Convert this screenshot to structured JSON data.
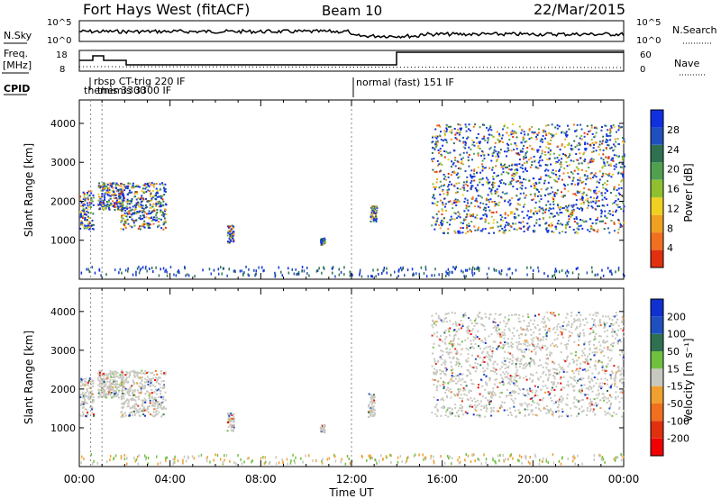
{
  "header": {
    "station": "Fort Hays West (fitACF)",
    "beam": "Beam 10",
    "date": "22/Mar/2015"
  },
  "noise": {
    "left_label": "N.Sky",
    "right_label": "N.Search",
    "ticks": [
      "10^5",
      "10^0"
    ],
    "right_ticks": [
      "10^5",
      "10^0"
    ]
  },
  "freq": {
    "left_label_1": "Freq.",
    "left_label_2": "[MHz]",
    "ticks": [
      "18",
      "8"
    ],
    "right_label": "Nave",
    "right_ticks": [
      "60",
      "0"
    ]
  },
  "cpid": {
    "label": "CPID",
    "segments": [
      {
        "text": "rbsp CT-trig 220 IF"
      },
      {
        "text": "themis 3300"
      },
      {
        "text": "themis 3300 IF"
      },
      {
        "text": "normal (fast) 151 IF"
      }
    ]
  },
  "x_axis": {
    "label": "Time UT",
    "ticks": [
      "00:00",
      "04:00",
      "08:00",
      "12:00",
      "16:00",
      "20:00",
      "00:00"
    ]
  },
  "chart_data": [
    {
      "type": "heatmap",
      "title": "",
      "xlabel": "Time UT",
      "ylabel": "Slant Range [km]",
      "x_range_hours": [
        0,
        24
      ],
      "ylim": [
        0,
        4600
      ],
      "y_ticks": [
        "4000",
        "3000",
        "2000",
        "1000"
      ],
      "colorbar_label": "Power [dB]",
      "colorbar_ticks": [
        "28",
        "24",
        "20",
        "16",
        "12",
        "8",
        "4"
      ],
      "colors": [
        "#1030e0",
        "#2050c0",
        "#2e7050",
        "#50a050",
        "#90c030",
        "#f0d020",
        "#f0a020",
        "#f07020",
        "#e03010"
      ],
      "echo_regions": [
        {
          "t": [
            0.0,
            0.6
          ],
          "range": [
            1300,
            2300
          ]
        },
        {
          "t": [
            0.8,
            1.9
          ],
          "range": [
            1800,
            2500
          ]
        },
        {
          "t": [
            1.8,
            3.8
          ],
          "range": [
            1300,
            2500
          ]
        },
        {
          "t": [
            6.5,
            6.8
          ],
          "range": [
            950,
            1400
          ]
        },
        {
          "t": [
            10.6,
            10.8
          ],
          "range": [
            900,
            1100
          ]
        },
        {
          "t": [
            12.8,
            13.1
          ],
          "range": [
            1500,
            1900
          ]
        },
        {
          "t": [
            15.5,
            24.0
          ],
          "range": [
            1200,
            4000
          ]
        }
      ]
    },
    {
      "type": "heatmap",
      "title": "",
      "xlabel": "Time UT",
      "ylabel": "Slant Range [km]",
      "x_range_hours": [
        0,
        24
      ],
      "ylim": [
        0,
        4600
      ],
      "y_ticks": [
        "4000",
        "3000",
        "2000",
        "1000"
      ],
      "colorbar_label": "Velocity [m s⁻¹]",
      "colorbar_ticks": [
        "200",
        "100",
        "50",
        "15",
        "-15",
        "-50",
        "-100",
        "-200"
      ],
      "colors": [
        "#1030d0",
        "#2050c0",
        "#2e7050",
        "#70c040",
        "#c8c8c0",
        "#f0a030",
        "#f07020",
        "#e03010",
        "#f00000"
      ],
      "echo_regions": [
        {
          "t": [
            0.0,
            0.6
          ],
          "range": [
            1300,
            2300
          ]
        },
        {
          "t": [
            0.8,
            1.9
          ],
          "range": [
            1800,
            2500
          ]
        },
        {
          "t": [
            1.8,
            3.8
          ],
          "range": [
            1300,
            2500
          ]
        },
        {
          "t": [
            6.5,
            6.8
          ],
          "range": [
            900,
            1400
          ]
        },
        {
          "t": [
            10.6,
            10.8
          ],
          "range": [
            900,
            1100
          ]
        },
        {
          "t": [
            12.7,
            13.0
          ],
          "range": [
            1300,
            1900
          ]
        },
        {
          "t": [
            15.5,
            24.0
          ],
          "range": [
            1300,
            4000
          ]
        }
      ]
    }
  ]
}
